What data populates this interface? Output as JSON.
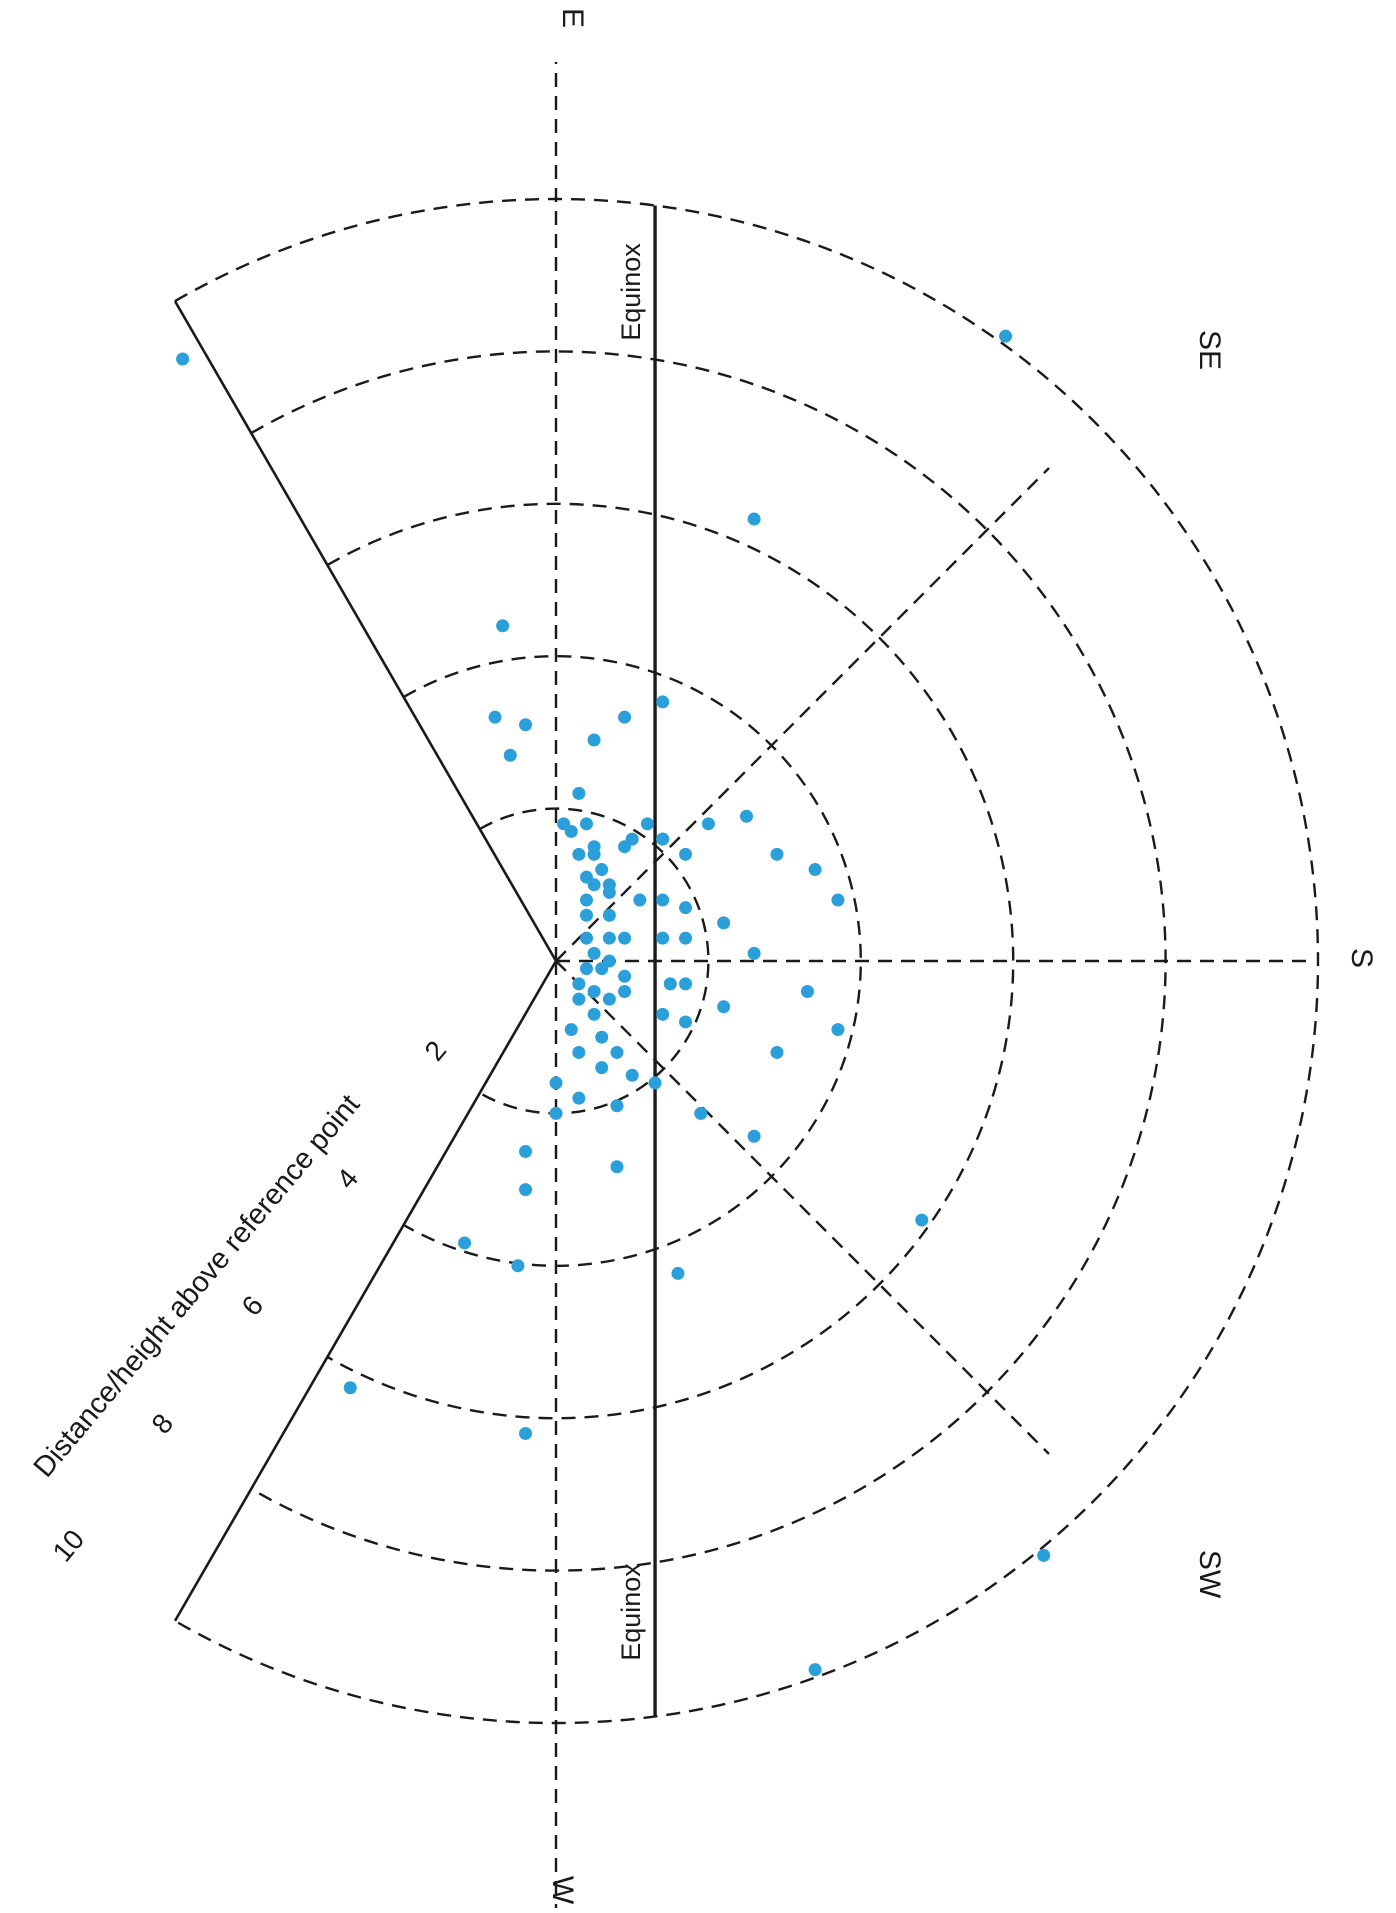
{
  "chart_data": {
    "type": "scatter",
    "coordinate_system": "polar (radial distance with compass directions)",
    "axis_label": "Distance/height above reference point",
    "radial_ticks": [
      "2",
      "4",
      "6",
      "8",
      "10"
    ],
    "radial_range": [
      0,
      10
    ],
    "ring_values": [
      2,
      4,
      6,
      8,
      10
    ],
    "directions": [
      {
        "label": "E",
        "bearing": 90
      },
      {
        "label": "SE",
        "bearing": 135
      },
      {
        "label": "S",
        "bearing": 180
      },
      {
        "label": "SW",
        "bearing": 225
      },
      {
        "label": "W",
        "bearing": 270
      }
    ],
    "equinox_lines": {
      "label": "Equinox",
      "offset": 1.3
    },
    "sector_limits_bearing": [
      60,
      300
    ],
    "point_color": "#2b9fd9",
    "line_color": "#1a1a1a",
    "points": [
      {
        "x": -4.9,
        "y": 7.9
      },
      {
        "x": 5.9,
        "y": 8.2
      },
      {
        "x": 2.6,
        "y": 5.8
      },
      {
        "x": 1.4,
        "y": 3.4
      },
      {
        "x": 0.9,
        "y": 3.2
      },
      {
        "x": 0.5,
        "y": 2.9
      },
      {
        "x": -0.7,
        "y": 4.4
      },
      {
        "x": -0.8,
        "y": 3.2
      },
      {
        "x": -0.4,
        "y": 3.1
      },
      {
        "x": -0.6,
        "y": 2.7
      },
      {
        "x": 0.3,
        "y": 2.2
      },
      {
        "x": 0.1,
        "y": 1.8
      },
      {
        "x": 2.5,
        "y": 1.9
      },
      {
        "x": 2.9,
        "y": 1.4
      },
      {
        "x": 3.4,
        "y": 1.2
      },
      {
        "x": 3.7,
        "y": 0.8
      },
      {
        "x": 2.0,
        "y": 1.8
      },
      {
        "x": 2.2,
        "y": 0.5
      },
      {
        "x": 2.6,
        "y": 0.1
      },
      {
        "x": 1.7,
        "y": 1.4
      },
      {
        "x": 1.4,
        "y": 1.6
      },
      {
        "x": 1.4,
        "y": 0.8
      },
      {
        "x": 1.7,
        "y": 0.7
      },
      {
        "x": 1.7,
        "y": 0.3
      },
      {
        "x": 1.4,
        "y": 0.3
      },
      {
        "x": 3.3,
        "y": -0.4
      },
      {
        "x": 3.7,
        "y": -0.9
      },
      {
        "x": 2.2,
        "y": -0.6
      },
      {
        "x": 1.7,
        "y": -0.3
      },
      {
        "x": 1.5,
        "y": -0.3
      },
      {
        "x": 1.7,
        "y": -0.8
      },
      {
        "x": 1.4,
        "y": -0.7
      },
      {
        "x": 2.9,
        "y": -1.2
      },
      {
        "x": 1.9,
        "y": -2.0
      },
      {
        "x": 2.6,
        "y": -2.3
      },
      {
        "x": 4.8,
        "y": -3.4
      },
      {
        "x": 1.6,
        "y": -4.1
      },
      {
        "x": 1.0,
        "y": -1.5
      },
      {
        "x": 0.8,
        "y": -2.7
      },
      {
        "x": 0.8,
        "y": -1.9
      },
      {
        "x": 1.3,
        "y": -1.6
      },
      {
        "x": -0.4,
        "y": -2.5
      },
      {
        "x": -0.4,
        "y": -3.0
      },
      {
        "x": -0.5,
        "y": -4.0
      },
      {
        "x": -1.2,
        "y": -3.7
      },
      {
        "x": -2.7,
        "y": -5.6
      },
      {
        "x": -0.4,
        "y": -6.2
      },
      {
        "x": 6.4,
        "y": -7.8
      },
      {
        "x": 3.4,
        "y": -9.3
      },
      {
        "x": 0.0,
        "y": -2.0
      },
      {
        "x": 0.0,
        "y": -1.6
      },
      {
        "x": 0.3,
        "y": -1.8
      },
      {
        "x": 0.8,
        "y": -1.2
      },
      {
        "x": 0.3,
        "y": -1.2
      },
      {
        "x": 0.6,
        "y": -1.0
      },
      {
        "x": 0.2,
        "y": -0.9
      },
      {
        "x": 0.5,
        "y": -0.7
      },
      {
        "x": 0.7,
        "y": -0.5
      },
      {
        "x": 0.3,
        "y": -0.5
      },
      {
        "x": 0.5,
        "y": -0.4
      },
      {
        "x": 0.9,
        "y": -0.2
      },
      {
        "x": 0.6,
        "y": -0.1
      },
      {
        "x": 0.4,
        "y": -0.1
      },
      {
        "x": 0.7,
        "y": 0.0
      },
      {
        "x": 0.5,
        "y": 0.1
      },
      {
        "x": 0.4,
        "y": 0.3
      },
      {
        "x": 0.7,
        "y": 0.3
      },
      {
        "x": 0.9,
        "y": 0.3
      },
      {
        "x": 0.4,
        "y": 0.6
      },
      {
        "x": 0.7,
        "y": 0.6
      },
      {
        "x": 0.4,
        "y": 0.8
      },
      {
        "x": 0.7,
        "y": 0.9
      },
      {
        "x": 1.1,
        "y": 0.8
      },
      {
        "x": 0.5,
        "y": 1.0
      },
      {
        "x": 0.7,
        "y": 1.0
      },
      {
        "x": 0.4,
        "y": 1.1
      },
      {
        "x": 0.6,
        "y": 1.2
      },
      {
        "x": 0.3,
        "y": 1.4
      },
      {
        "x": 0.5,
        "y": 1.5
      },
      {
        "x": 0.9,
        "y": 1.5
      },
      {
        "x": 0.2,
        "y": 1.7
      },
      {
        "x": 0.4,
        "y": 1.8
      },
      {
        "x": 1.0,
        "y": 1.6
      },
      {
        "x": 1.2,
        "y": 1.8
      },
      {
        "x": 1.4,
        "y": 1.6
      },
      {
        "x": 0.5,
        "y": 1.4
      },
      {
        "x": 0.9,
        "y": -0.4
      },
      {
        "x": 0.3,
        "y": -0.3
      },
      {
        "x": 0.6,
        "y": -1.4
      }
    ]
  }
}
